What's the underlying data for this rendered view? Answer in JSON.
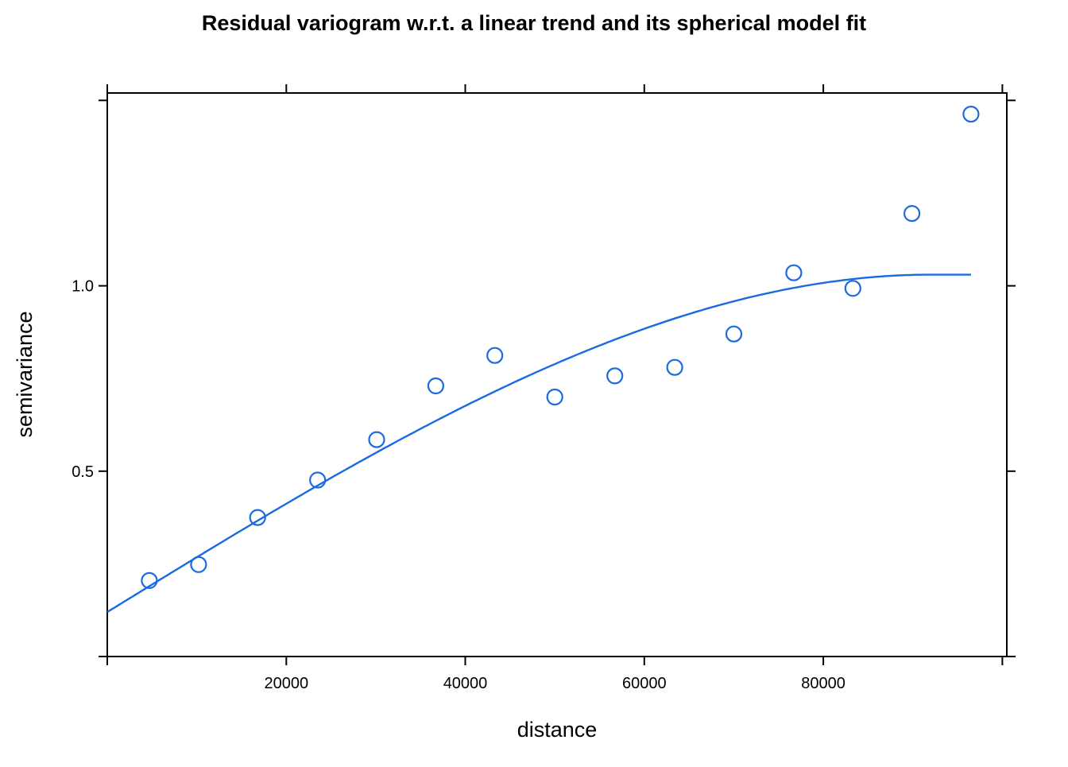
{
  "chart_data": {
    "type": "scatter",
    "title": "Residual variogram w.r.t. a linear trend and its spherical model fit",
    "xlabel": "distance",
    "ylabel": "semivariance",
    "xlim": [
      0,
      100500
    ],
    "ylim": [
      0,
      1.52
    ],
    "xticks": [
      20000,
      40000,
      60000,
      80000
    ],
    "yticks": [
      0.5,
      1.0
    ],
    "xtick_labels": [
      "20000",
      "40000",
      "60000",
      "80000"
    ],
    "ytick_labels": [
      "0.5",
      "1.0"
    ],
    "grid": false,
    "point_color": "#1a6ae3",
    "line_color": "#1a6ae3",
    "series": [
      {
        "type": "points",
        "x": [
          4700,
          10200,
          16800,
          23500,
          30100,
          36700,
          43300,
          50000,
          56700,
          63400,
          70000,
          76700,
          83300,
          89900,
          96500
        ],
        "y": [
          0.205,
          0.248,
          0.375,
          0.476,
          0.585,
          0.73,
          0.812,
          0.7,
          0.757,
          0.78,
          0.87,
          1.035,
          0.993,
          1.195,
          1.463
        ]
      },
      {
        "type": "model",
        "model": "spherical",
        "nugget": 0.12,
        "psill": 0.91,
        "range": 92000,
        "x_max": 96500
      }
    ]
  }
}
